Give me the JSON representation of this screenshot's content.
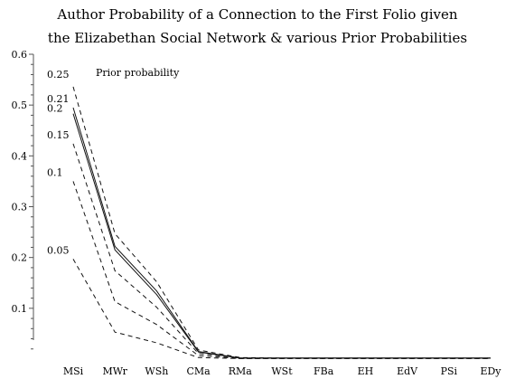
{
  "title_lines": [
    "Author Probability of a Connection to the First Folio given",
    "the Elizabethan Social Network & various Prior Probabilities"
  ],
  "chart_data": {
    "type": "line",
    "categories": [
      "MSi",
      "MWr",
      "WSh",
      "CMa",
      "RMa",
      "WSt",
      "FBa",
      "EH",
      "EdV",
      "PSi",
      "EDy"
    ],
    "ylim": [
      0,
      0.6
    ],
    "yticks": [
      0.1,
      0.2,
      0.3,
      0.4,
      0.5,
      0.6
    ],
    "annotation": "Prior probability",
    "series": [
      {
        "name": "0.25",
        "values": [
          0.536,
          0.247,
          0.152,
          0.018,
          0.003,
          0.002,
          0.002,
          0.002,
          0.002,
          0.002,
          0.002
        ],
        "dashed": true
      },
      {
        "name": "0.21",
        "values": [
          0.495,
          0.222,
          0.134,
          0.015,
          0.002,
          0.002,
          0.002,
          0.002,
          0.002,
          0.002,
          0.002
        ],
        "dashed": false
      },
      {
        "name": "0.2",
        "values": [
          0.483,
          0.215,
          0.127,
          0.014,
          0.002,
          0.002,
          0.002,
          0.002,
          0.002,
          0.002,
          0.002
        ],
        "dashed": false
      },
      {
        "name": "0.15",
        "values": [
          0.424,
          0.174,
          0.102,
          0.011,
          0.002,
          0.002,
          0.002,
          0.002,
          0.002,
          0.002,
          0.002
        ],
        "dashed": true
      },
      {
        "name": "0.1",
        "values": [
          0.35,
          0.113,
          0.068,
          0.007,
          0.001,
          0.001,
          0.001,
          0.001,
          0.001,
          0.001,
          0.001
        ],
        "dashed": true
      },
      {
        "name": "0.05",
        "values": [
          0.197,
          0.053,
          0.032,
          0.003,
          0.001,
          0.001,
          0.001,
          0.001,
          0.001,
          0.001,
          0.001
        ],
        "dashed": true
      }
    ]
  }
}
